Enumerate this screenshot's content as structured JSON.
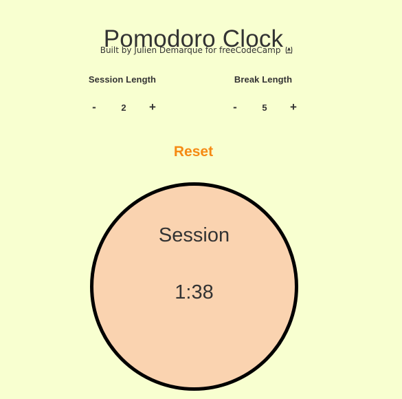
{
  "header": {
    "title": "Pomodoro Clock",
    "subtitle": "Built by Julien Demarque for freeCodeCamp",
    "subtitle_icon": "fire-icon"
  },
  "session": {
    "label": "Session Length",
    "decrement_label": "-",
    "value": "2",
    "increment_label": "+"
  },
  "break": {
    "label": "Break Length",
    "decrement_label": "-",
    "value": "5",
    "increment_label": "+"
  },
  "reset_label": "Reset",
  "clock": {
    "mode_label": "Session",
    "time": "1:38"
  },
  "colors": {
    "background": "#f8ffd0",
    "clock_fill": "#fad3b0",
    "clock_border": "#000000",
    "reset_accent": "#f58a14",
    "text": "#333333"
  }
}
